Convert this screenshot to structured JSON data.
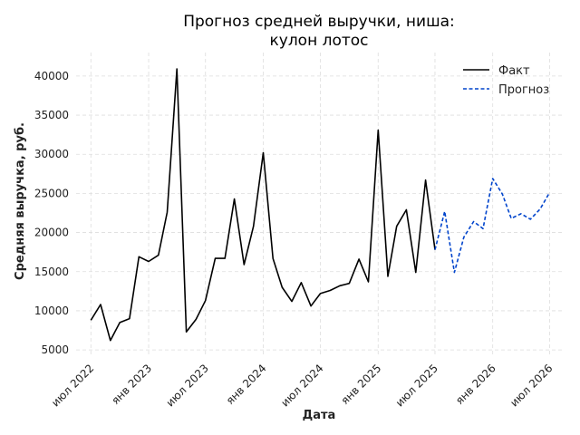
{
  "chart_data": {
    "type": "line",
    "title": [
      "Прогноз средней выручки, ниша:",
      "кулон лотос"
    ],
    "xlabel": "Дата",
    "ylabel": "Средняя выручка, руб.",
    "ylim": [
      4200,
      43000
    ],
    "xlim": [
      "2022-05-15",
      "2026-08-15"
    ],
    "yticks": [
      5000,
      10000,
      15000,
      20000,
      25000,
      30000,
      35000,
      40000
    ],
    "xticks": [
      {
        "date": "2022-07-01",
        "label": "июл 2022"
      },
      {
        "date": "2023-01-01",
        "label": "янв 2023"
      },
      {
        "date": "2023-07-01",
        "label": "июл 2023"
      },
      {
        "date": "2024-01-01",
        "label": "янв 2024"
      },
      {
        "date": "2024-07-01",
        "label": "июл 2024"
      },
      {
        "date": "2025-01-01",
        "label": "янв 2025"
      },
      {
        "date": "2025-07-01",
        "label": "июл 2025"
      },
      {
        "date": "2026-01-01",
        "label": "янв 2026"
      },
      {
        "date": "2026-07-01",
        "label": "июл 2026"
      }
    ],
    "grid": true,
    "legend_position": "top-right",
    "series": [
      {
        "name": "Факт",
        "color": "#000000",
        "style": "solid",
        "points": [
          [
            "2022-07-01",
            8800
          ],
          [
            "2022-08-01",
            10800
          ],
          [
            "2022-09-01",
            6200
          ],
          [
            "2022-10-01",
            8500
          ],
          [
            "2022-11-01",
            9000
          ],
          [
            "2022-12-01",
            16900
          ],
          [
            "2023-01-01",
            16300
          ],
          [
            "2023-02-01",
            17100
          ],
          [
            "2023-03-01",
            22600
          ],
          [
            "2023-04-01",
            40900
          ],
          [
            "2023-05-01",
            7300
          ],
          [
            "2023-06-01",
            8900
          ],
          [
            "2023-07-01",
            11300
          ],
          [
            "2023-08-01",
            16700
          ],
          [
            "2023-09-01",
            16700
          ],
          [
            "2023-10-01",
            24300
          ],
          [
            "2023-11-01",
            15900
          ],
          [
            "2023-12-01",
            20800
          ],
          [
            "2024-01-01",
            30200
          ],
          [
            "2024-02-01",
            16700
          ],
          [
            "2024-03-01",
            13000
          ],
          [
            "2024-04-01",
            11200
          ],
          [
            "2024-05-01",
            13600
          ],
          [
            "2024-06-01",
            10600
          ],
          [
            "2024-07-01",
            12200
          ],
          [
            "2024-08-01",
            12600
          ],
          [
            "2024-09-01",
            13200
          ],
          [
            "2024-10-01",
            13500
          ],
          [
            "2024-11-01",
            16600
          ],
          [
            "2024-12-01",
            13700
          ],
          [
            "2025-01-01",
            33100
          ],
          [
            "2025-02-01",
            14400
          ],
          [
            "2025-03-01",
            20800
          ],
          [
            "2025-04-01",
            22900
          ],
          [
            "2025-05-01",
            14900
          ],
          [
            "2025-06-01",
            26700
          ],
          [
            "2025-07-01",
            17800
          ]
        ]
      },
      {
        "name": "Прогноз",
        "color": "#0044cc",
        "style": "dashed",
        "points": [
          [
            "2025-07-01",
            17800
          ],
          [
            "2025-08-01",
            22700
          ],
          [
            "2025-09-01",
            14900
          ],
          [
            "2025-10-01",
            19400
          ],
          [
            "2025-11-01",
            21400
          ],
          [
            "2025-12-01",
            20500
          ],
          [
            "2026-01-01",
            26900
          ],
          [
            "2026-02-01",
            24900
          ],
          [
            "2026-03-01",
            21800
          ],
          [
            "2026-04-01",
            22400
          ],
          [
            "2026-05-01",
            21700
          ],
          [
            "2026-06-01",
            23000
          ],
          [
            "2026-07-01",
            25100
          ]
        ]
      }
    ]
  }
}
